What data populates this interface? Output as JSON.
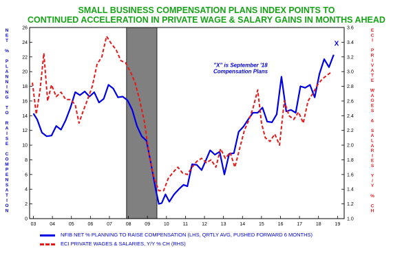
{
  "titles": {
    "line1": "SMALL BUSINESS COMPENSATION PLANS INDEX POINTS TO",
    "line2": "CONTINUED ACCELERATION IN PRIVATE WAGE & SALARY GAINS IN MONTHS AHEAD"
  },
  "colors": {
    "title": "#17a317",
    "nfib": "#0000e6",
    "eci": "#e61919",
    "recession": "#808080",
    "axis_left": "#0000d0",
    "axis_right": "#e61919"
  },
  "annotation": {
    "line1": "\"X\" is September '18",
    "line2": "Compensation Plans",
    "marker": "X"
  },
  "legend": {
    "nfib": "NFIB NET % PLANNING TO RAISE COMPENSATION (LHS, QRTLY AVG, PUSHED FORWARD 6 MONTHS)",
    "eci": "ECI PRIVATE WAGES & SALARIES, Y/Y % CH (RHS)"
  },
  "chart_data": {
    "type": "line",
    "title": "SMALL BUSINESS COMPENSATION PLANS INDEX POINTS TO CONTINUED ACCELERATION IN PRIVATE WAGE & SALARY GAINS IN MONTHS AHEAD",
    "ylabel_left": "NET % PLANNING TO RAISE COMPENSATION",
    "ylabel_right": "ECI PRIVATE WAGES & SALARIES Y/Y % CH",
    "x_ticks": [
      "03",
      "04",
      "05",
      "06",
      "07",
      "08",
      "09",
      "10",
      "11",
      "12",
      "13",
      "14",
      "15",
      "16",
      "17",
      "18",
      "19"
    ],
    "ylim_left": [
      0,
      26
    ],
    "ylim_right": [
      1.0,
      3.6
    ],
    "yticks_left": [
      "0",
      "2",
      "4",
      "6",
      "8",
      "10",
      "12",
      "14",
      "16",
      "18",
      "20",
      "22",
      "24",
      "26"
    ],
    "yticks_right": [
      "1.0",
      "1.2",
      "1.4",
      "1.6",
      "1.8",
      "2.0",
      "2.2",
      "2.4",
      "2.6",
      "2.8",
      "3.0",
      "3.2",
      "3.4",
      "3.6"
    ],
    "grid": false,
    "legend_position": "bottom-left",
    "shaded_regions": [
      {
        "label": "recession",
        "x_start": 2007.9,
        "x_end": 2009.5
      }
    ],
    "series": [
      {
        "name": "NFIB NET % PLANNING TO RAISE COMPENSATION (LHS, QRTLY AVG, PUSHED FORWARD 6 MONTHS)",
        "axis": "left",
        "style": "solid",
        "points": [
          [
            2003.0,
            14.3
          ],
          [
            2003.2,
            13.5
          ],
          [
            2003.45,
            11.7
          ],
          [
            2003.7,
            11.2
          ],
          [
            2003.95,
            11.3
          ],
          [
            2004.2,
            12.6
          ],
          [
            2004.45,
            12.1
          ],
          [
            2004.7,
            13.4
          ],
          [
            2004.95,
            15.1
          ],
          [
            2005.2,
            17.2
          ],
          [
            2005.45,
            16.8
          ],
          [
            2005.7,
            17.3
          ],
          [
            2005.95,
            16.6
          ],
          [
            2006.2,
            17.2
          ],
          [
            2006.45,
            15.8
          ],
          [
            2006.7,
            16.3
          ],
          [
            2006.95,
            18.2
          ],
          [
            2007.2,
            17.7
          ],
          [
            2007.45,
            16.5
          ],
          [
            2007.7,
            16.6
          ],
          [
            2007.95,
            16.1
          ],
          [
            2008.2,
            14.8
          ],
          [
            2008.45,
            12.6
          ],
          [
            2008.7,
            11.2
          ],
          [
            2008.95,
            10.6
          ],
          [
            2009.2,
            7.3
          ],
          [
            2009.45,
            3.8
          ],
          [
            2009.6,
            2.0
          ],
          [
            2009.75,
            2.1
          ],
          [
            2009.95,
            3.3
          ],
          [
            2010.15,
            2.3
          ],
          [
            2010.4,
            3.3
          ],
          [
            2010.65,
            4.0
          ],
          [
            2010.9,
            4.6
          ],
          [
            2011.1,
            4.4
          ],
          [
            2011.35,
            7.4
          ],
          [
            2011.6,
            7.3
          ],
          [
            2011.85,
            6.6
          ],
          [
            2012.1,
            8.1
          ],
          [
            2012.3,
            9.3
          ],
          [
            2012.55,
            8.7
          ],
          [
            2012.8,
            9.1
          ],
          [
            2013.05,
            6.0
          ],
          [
            2013.3,
            8.8
          ],
          [
            2013.55,
            8.9
          ],
          [
            2013.8,
            11.8
          ],
          [
            2014.05,
            12.5
          ],
          [
            2014.3,
            13.5
          ],
          [
            2014.55,
            14.4
          ],
          [
            2014.8,
            14.4
          ],
          [
            2015.05,
            15.1
          ],
          [
            2015.3,
            13.2
          ],
          [
            2015.55,
            13.1
          ],
          [
            2015.8,
            14.2
          ],
          [
            2016.05,
            19.3
          ],
          [
            2016.3,
            14.6
          ],
          [
            2016.55,
            14.8
          ],
          [
            2016.8,
            14.4
          ],
          [
            2017.05,
            18.0
          ],
          [
            2017.3,
            17.8
          ],
          [
            2017.55,
            18.2
          ],
          [
            2017.8,
            16.5
          ],
          [
            2018.05,
            19.7
          ],
          [
            2018.3,
            21.7
          ],
          [
            2018.55,
            20.6
          ],
          [
            2018.8,
            22.3
          ]
        ]
      },
      {
        "name": "ECI PRIVATE WAGES & SALARIES, Y/Y % CH (RHS)",
        "axis": "right",
        "style": "dashed",
        "points": [
          [
            2002.95,
            2.85
          ],
          [
            2003.15,
            2.42
          ],
          [
            2003.35,
            2.75
          ],
          [
            2003.55,
            3.25
          ],
          [
            2003.75,
            2.6
          ],
          [
            2003.95,
            2.82
          ],
          [
            2004.2,
            2.66
          ],
          [
            2004.45,
            2.72
          ],
          [
            2004.7,
            2.62
          ],
          [
            2004.95,
            2.62
          ],
          [
            2005.2,
            2.55
          ],
          [
            2005.4,
            2.3
          ],
          [
            2005.6,
            2.45
          ],
          [
            2005.85,
            2.62
          ],
          [
            2006.1,
            2.8
          ],
          [
            2006.35,
            3.1
          ],
          [
            2006.6,
            3.2
          ],
          [
            2006.85,
            3.48
          ],
          [
            2007.1,
            3.38
          ],
          [
            2007.35,
            3.3
          ],
          [
            2007.6,
            3.15
          ],
          [
            2007.85,
            3.12
          ],
          [
            2008.1,
            3.0
          ],
          [
            2008.35,
            2.85
          ],
          [
            2008.6,
            2.6
          ],
          [
            2008.85,
            2.3
          ],
          [
            2009.1,
            1.85
          ],
          [
            2009.35,
            1.55
          ],
          [
            2009.6,
            1.38
          ],
          [
            2009.85,
            1.38
          ],
          [
            2010.1,
            1.55
          ],
          [
            2010.35,
            1.63
          ],
          [
            2010.6,
            1.7
          ],
          [
            2010.85,
            1.62
          ],
          [
            2011.1,
            1.6
          ],
          [
            2011.35,
            1.7
          ],
          [
            2011.6,
            1.78
          ],
          [
            2011.85,
            1.82
          ],
          [
            2012.1,
            1.76
          ],
          [
            2012.35,
            1.8
          ],
          [
            2012.6,
            1.7
          ],
          [
            2012.85,
            1.95
          ],
          [
            2013.1,
            1.82
          ],
          [
            2013.35,
            1.9
          ],
          [
            2013.6,
            1.7
          ],
          [
            2013.85,
            1.95
          ],
          [
            2014.1,
            2.2
          ],
          [
            2014.35,
            2.35
          ],
          [
            2014.55,
            2.5
          ],
          [
            2014.8,
            2.75
          ],
          [
            2015.0,
            2.3
          ],
          [
            2015.2,
            2.1
          ],
          [
            2015.45,
            2.05
          ],
          [
            2015.7,
            2.15
          ],
          [
            2015.95,
            2.0
          ],
          [
            2016.2,
            2.6
          ],
          [
            2016.45,
            2.4
          ],
          [
            2016.7,
            2.35
          ],
          [
            2016.95,
            2.45
          ],
          [
            2017.2,
            2.3
          ],
          [
            2017.45,
            2.6
          ],
          [
            2017.7,
            2.7
          ],
          [
            2017.95,
            2.82
          ],
          [
            2018.2,
            2.9
          ],
          [
            2018.45,
            2.95
          ],
          [
            2018.7,
            3.0
          ]
        ]
      }
    ],
    "annotations": [
      {
        "text": "X",
        "x": 2018.95,
        "y_left": 23.8
      }
    ]
  }
}
